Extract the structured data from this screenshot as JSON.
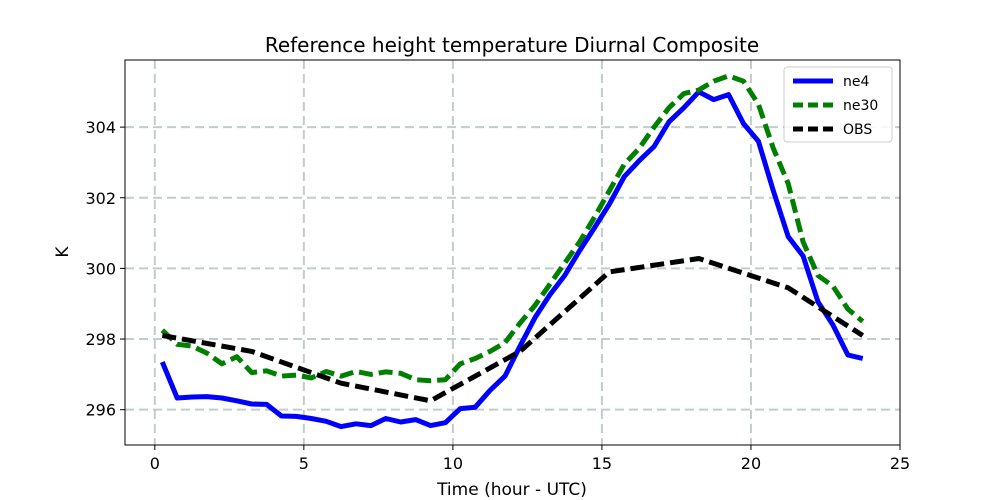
{
  "chart_data": {
    "type": "line",
    "title": "Reference height temperature Diurnal Composite",
    "xlabel": "Time (hour - UTC)",
    "ylabel": "K",
    "xlim": [
      -1,
      25
    ],
    "ylim": [
      295.0,
      305.9
    ],
    "xticks": [
      0,
      5,
      10,
      15,
      20,
      25
    ],
    "yticks": [
      296,
      298,
      300,
      302,
      304
    ],
    "grid": true,
    "legend_position": "top-right",
    "series": [
      {
        "name": "ne4",
        "color": "#0000ff",
        "style": "solid",
        "x": [
          0.25,
          0.75,
          1.25,
          1.75,
          2.25,
          2.75,
          3.25,
          3.75,
          4.25,
          4.75,
          5.25,
          5.75,
          6.25,
          6.75,
          7.25,
          7.75,
          8.25,
          8.75,
          9.25,
          9.75,
          10.25,
          10.75,
          11.25,
          11.75,
          12.25,
          12.75,
          13.25,
          13.75,
          14.25,
          14.75,
          15.25,
          15.75,
          16.25,
          16.75,
          17.25,
          17.75,
          18.25,
          18.75,
          19.25,
          19.75,
          20.25,
          20.75,
          21.25,
          21.75,
          22.25,
          22.75,
          23.25,
          23.75
        ],
        "y": [
          297.35,
          296.33,
          296.36,
          296.37,
          296.33,
          296.25,
          296.16,
          296.15,
          295.82,
          295.81,
          295.75,
          295.67,
          295.52,
          295.6,
          295.55,
          295.75,
          295.65,
          295.72,
          295.55,
          295.63,
          296.03,
          296.07,
          296.55,
          296.95,
          297.8,
          298.6,
          299.25,
          299.8,
          300.5,
          301.15,
          301.82,
          302.6,
          303.05,
          303.45,
          304.15,
          304.55,
          305.0,
          304.78,
          304.92,
          304.1,
          303.6,
          302.2,
          300.9,
          300.35,
          299.05,
          298.4,
          297.55,
          297.45
        ]
      },
      {
        "name": "ne30",
        "color": "#008000",
        "style": "dashed",
        "x": [
          0.25,
          0.75,
          1.25,
          1.75,
          2.25,
          2.75,
          3.25,
          3.75,
          4.25,
          4.75,
          5.25,
          5.75,
          6.25,
          6.75,
          7.25,
          7.75,
          8.25,
          8.75,
          9.25,
          9.75,
          10.25,
          10.75,
          11.25,
          11.75,
          12.25,
          12.75,
          13.25,
          13.75,
          14.25,
          14.75,
          15.25,
          15.75,
          16.25,
          16.75,
          17.25,
          17.75,
          18.25,
          18.75,
          19.25,
          19.75,
          20.25,
          20.75,
          21.25,
          21.75,
          22.25,
          22.75,
          23.25,
          23.75
        ],
        "y": [
          298.25,
          297.85,
          297.8,
          297.6,
          297.3,
          297.5,
          297.05,
          297.1,
          296.95,
          296.98,
          296.9,
          297.08,
          296.95,
          297.08,
          297.0,
          297.07,
          297.03,
          296.85,
          296.82,
          296.85,
          297.3,
          297.45,
          297.65,
          297.9,
          298.45,
          298.95,
          299.55,
          300.15,
          300.75,
          301.45,
          302.2,
          302.95,
          303.4,
          304.0,
          304.55,
          304.95,
          305.05,
          305.3,
          305.45,
          305.3,
          304.65,
          303.4,
          302.4,
          300.75,
          299.8,
          299.5,
          298.85,
          298.5
        ]
      },
      {
        "name": "OBS",
        "color": "#000000",
        "style": "dashed",
        "x": [
          0.25,
          3.25,
          6.25,
          9.25,
          12.25,
          15.25,
          18.25,
          21.25,
          23.75
        ],
        "y": [
          298.1,
          297.65,
          296.75,
          296.25,
          297.65,
          299.9,
          300.28,
          299.45,
          298.1
        ]
      }
    ]
  }
}
